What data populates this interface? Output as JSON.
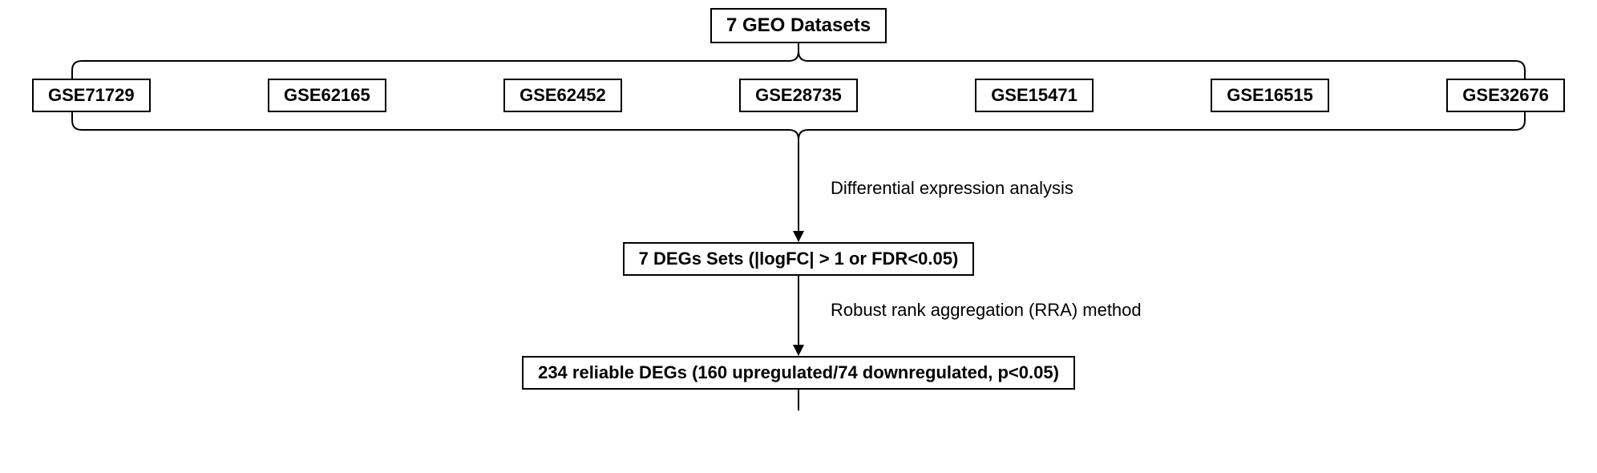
{
  "type": "flowchart",
  "background_color": "#ffffff",
  "border_color": "#000000",
  "text_color": "#000000",
  "line_color": "#000000",
  "line_width": 2,
  "font_family": "Arial, Helvetica, sans-serif",
  "title_fontsize": 24,
  "dataset_fontsize": 22,
  "step_fontsize": 22,
  "label_fontsize": 22,
  "top": {
    "title": "7 GEO Datasets"
  },
  "datasets": [
    "GSE71729",
    "GSE62165",
    "GSE62452",
    "GSE28735",
    "GSE15471",
    "GSE16515",
    "GSE32676"
  ],
  "steps": {
    "degs": "7 DEGs Sets (|logFC| > 1 or FDR<0.05)",
    "reliable": "234 reliable DEGs (160 upregulated/74 downregulated, p<0.05)"
  },
  "edge_labels": {
    "diff_expr": "Differential expression analysis",
    "rra": "Robust rank aggregation (RRA) method"
  },
  "layout": {
    "total_width": 1992,
    "dataset_box_padding": "6px 18px",
    "bracket_top_height": 44,
    "bracket_bottom_height": 44,
    "arrow1_height": 118,
    "arrow2_height": 100,
    "arrow3_stub_height": 26,
    "bracket_radius": 12,
    "arrow_head": 10
  }
}
